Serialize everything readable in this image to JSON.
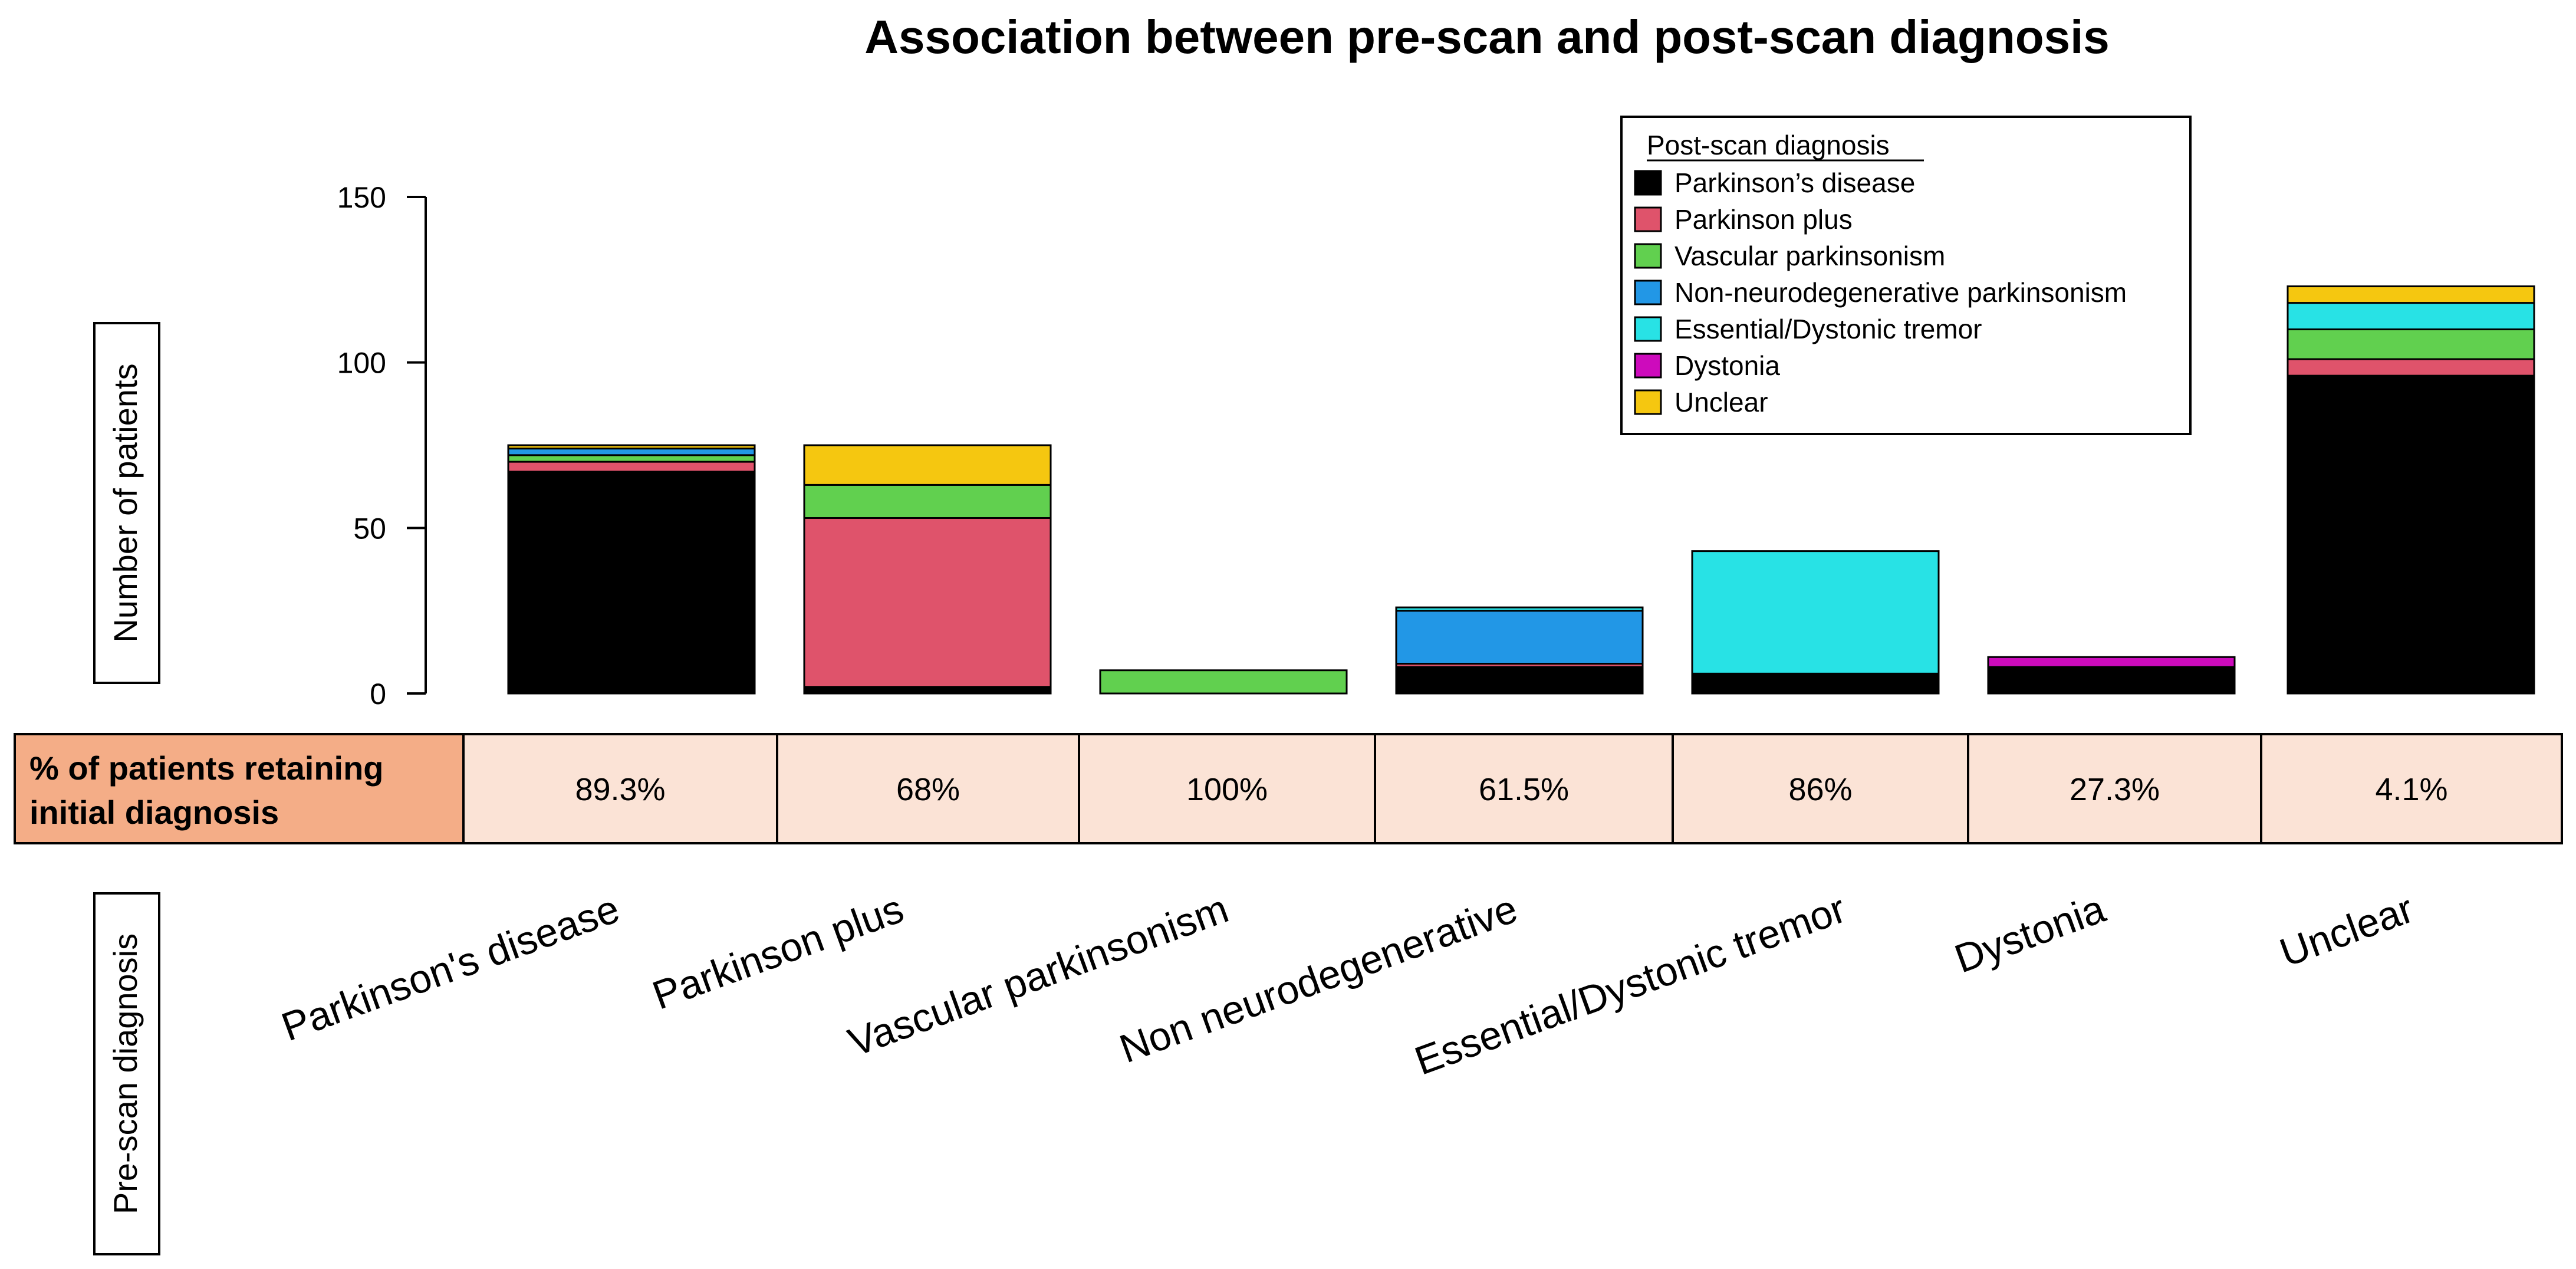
{
  "colors": {
    "parkinsons_disease": "#000000",
    "parkinson_plus": "#DF536B",
    "vascular_parkinsonism": "#61D04F",
    "non_neurodegenerative": "#2297E6",
    "essential_dystonic_tremor": "#28E2E5",
    "dystonia": "#CD0BBC",
    "unclear": "#F5C710",
    "table_header_bg": "#F4AD87",
    "table_cell_bg": "#FBE3D6"
  },
  "chart_data": {
    "type": "bar",
    "stacked": true,
    "title": "Association between pre-scan and post-scan diagnosis",
    "ylabel": "Number of patients",
    "xlabel": "Pre-scan diagnosis",
    "ylim": [
      0,
      150
    ],
    "yticks": [
      0,
      50,
      100,
      150
    ],
    "categories": [
      "Parkinson's disease",
      "Parkinson plus",
      "Vascular parkinsonism",
      "Non neurodegenerative",
      "Essential/Dystonic tremor",
      "Dystonia",
      "Unclear"
    ],
    "legend_title": "Post-scan diagnosis",
    "legend_position": "top-right",
    "series": [
      {
        "name": "Parkinson’s disease",
        "color_key": "parkinsons_disease",
        "values": [
          67,
          2,
          0,
          8,
          6,
          8,
          96
        ]
      },
      {
        "name": "Parkinson plus",
        "color_key": "parkinson_plus",
        "values": [
          3,
          51,
          0,
          1,
          0,
          0,
          5
        ]
      },
      {
        "name": "Vascular parkinsonism",
        "color_key": "vascular_parkinsonism",
        "values": [
          2,
          10,
          7,
          0,
          0,
          0,
          9
        ]
      },
      {
        "name": "Non-neurodegenerative parkinsonism",
        "color_key": "non_neurodegenerative",
        "values": [
          2,
          0,
          0,
          16,
          0,
          0,
          0
        ]
      },
      {
        "name": "Essential/Dystonic tremor",
        "color_key": "essential_dystonic_tremor",
        "values": [
          0,
          0,
          0,
          1,
          37,
          0,
          8
        ]
      },
      {
        "name": "Dystonia",
        "color_key": "dystonia",
        "values": [
          0,
          0,
          0,
          0,
          0,
          3,
          0
        ]
      },
      {
        "name": "Unclear",
        "color_key": "unclear",
        "values": [
          1,
          12,
          0,
          0,
          0,
          0,
          5
        ]
      }
    ],
    "table": {
      "header": "% of patients retaining initial diagnosis",
      "header_lines": [
        "% of patients retaining",
        "initial diagnosis"
      ],
      "values": [
        "89.3%",
        "68%",
        "100%",
        "61.5%",
        "86%",
        "27.3%",
        "4.1%"
      ]
    }
  }
}
